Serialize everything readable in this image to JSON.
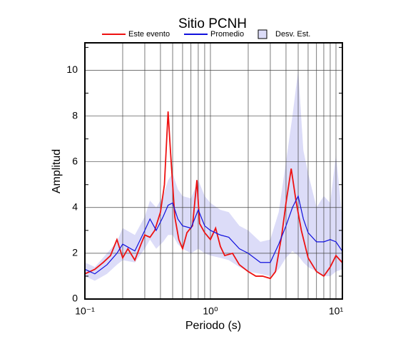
{
  "chart_data": {
    "type": "line",
    "title": "Sitio PCNH",
    "xlabel": "Periodo (s)",
    "ylabel": "Amplitud",
    "xscale": "log",
    "xlim": [
      0.1,
      11.25
    ],
    "ylim": [
      0,
      11.2
    ],
    "xticks": [
      {
        "value": 0.1,
        "label": "10⁻¹"
      },
      {
        "value": 1,
        "label": "10⁰"
      },
      {
        "value": 10,
        "label": "10¹"
      }
    ],
    "xminorticks": [
      0.2,
      0.3,
      0.4,
      0.5,
      0.6,
      0.7,
      0.8,
      0.9,
      2,
      3,
      4,
      5,
      6,
      7,
      8,
      9
    ],
    "yticks": [
      0,
      2,
      4,
      6,
      8,
      10
    ],
    "yminorticks": [
      1,
      3,
      5,
      7,
      9,
      11
    ],
    "grid": true,
    "legend": "top",
    "band": {
      "name": "Desv. Est.",
      "color": "#dcdcf8",
      "x": [
        0.1,
        0.12,
        0.15,
        0.18,
        0.2,
        0.25,
        0.3,
        0.33,
        0.37,
        0.42,
        0.46,
        0.5,
        0.55,
        0.6,
        0.7,
        0.8,
        0.9,
        1.0,
        1.2,
        1.4,
        1.7,
        2.0,
        2.5,
        3.0,
        3.5,
        4.0,
        4.5,
        5.0,
        5.5,
        6.0,
        7.0,
        8.0,
        9.0,
        10,
        11.2
      ],
      "lower": [
        1.0,
        0.8,
        1.1,
        1.5,
        1.7,
        1.6,
        2.2,
        2.6,
        2.2,
        2.5,
        2.8,
        2.8,
        2.4,
        2.2,
        2.0,
        2.2,
        2.0,
        1.9,
        1.8,
        1.7,
        1.4,
        1.2,
        1.1,
        1.0,
        1.3,
        1.8,
        2.1,
        1.9,
        1.6,
        1.4,
        1.2,
        1.0,
        1.0,
        1.2,
        1.3
      ],
      "upper": [
        1.6,
        1.4,
        2.0,
        2.5,
        3.1,
        2.8,
        3.6,
        4.3,
        4.0,
        4.5,
        5.2,
        5.5,
        4.8,
        4.5,
        4.4,
        5.2,
        4.5,
        4.2,
        3.9,
        3.8,
        3.2,
        3.0,
        2.5,
        2.6,
        3.8,
        6.0,
        8.0,
        10.0,
        6.5,
        5.5,
        4.0,
        4.5,
        4.2,
        6.3,
        3.6
      ]
    },
    "series": [
      {
        "name": "Este evento",
        "color": "#ee1111",
        "x": [
          0.1,
          0.12,
          0.14,
          0.16,
          0.18,
          0.2,
          0.22,
          0.25,
          0.28,
          0.3,
          0.33,
          0.36,
          0.4,
          0.43,
          0.46,
          0.48,
          0.52,
          0.56,
          0.6,
          0.65,
          0.72,
          0.78,
          0.82,
          0.9,
          1.0,
          1.1,
          1.2,
          1.3,
          1.5,
          1.7,
          2.0,
          2.3,
          2.6,
          3.0,
          3.3,
          3.7,
          4.0,
          4.4,
          4.8,
          5.3,
          6.0,
          7.0,
          8.0,
          9.0,
          10.0,
          11.2
        ],
        "values": [
          1.1,
          1.3,
          1.6,
          1.9,
          2.6,
          1.8,
          2.2,
          1.7,
          2.4,
          2.8,
          2.7,
          3.0,
          3.8,
          5.0,
          8.2,
          6.5,
          3.6,
          2.6,
          2.2,
          2.9,
          3.2,
          5.2,
          3.3,
          2.9,
          2.6,
          3.1,
          2.3,
          1.9,
          2.0,
          1.5,
          1.2,
          1.0,
          1.0,
          0.9,
          1.2,
          2.8,
          4.2,
          5.7,
          4.3,
          3.0,
          1.8,
          1.2,
          1.0,
          1.4,
          1.9,
          1.6
        ]
      },
      {
        "name": "Promedio",
        "color": "#1111dd",
        "x": [
          0.1,
          0.12,
          0.15,
          0.18,
          0.2,
          0.25,
          0.3,
          0.33,
          0.37,
          0.42,
          0.46,
          0.5,
          0.55,
          0.6,
          0.7,
          0.8,
          0.9,
          1.0,
          1.2,
          1.4,
          1.7,
          2.0,
          2.5,
          3.0,
          3.5,
          4.0,
          4.5,
          5.0,
          5.5,
          6.0,
          7.0,
          8.0,
          9.0,
          10,
          11.2
        ],
        "values": [
          1.3,
          1.1,
          1.5,
          2.0,
          2.4,
          2.1,
          3.0,
          3.5,
          3.0,
          3.6,
          4.1,
          4.2,
          3.5,
          3.2,
          3.1,
          3.9,
          3.2,
          3.0,
          2.8,
          2.7,
          2.2,
          2.0,
          1.6,
          1.6,
          2.4,
          3.2,
          4.0,
          4.5,
          3.5,
          2.9,
          2.5,
          2.5,
          2.6,
          2.5,
          2.1
        ]
      }
    ]
  }
}
